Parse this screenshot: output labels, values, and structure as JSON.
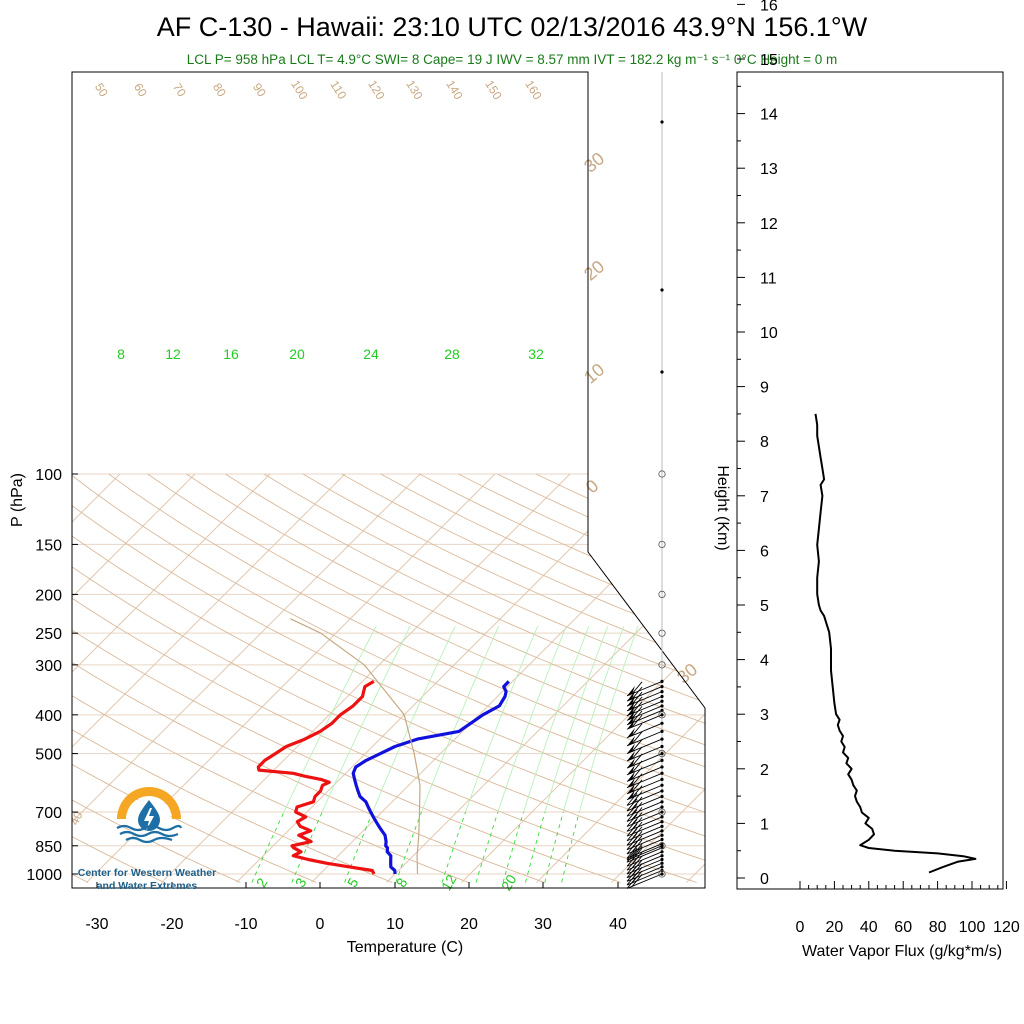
{
  "title": "AF C-130 - Hawaii: 23:10 UTC 02/13/2016  43.9°N 156.1°W",
  "subtitle": "LCL P= 958 hPa  LCL T= 4.9°C  SWI= 8  Cape= 19 J  IWV = 8.57 mm  IVT = 182.2 kg m⁻¹ s⁻¹  0°C Height = 0 m",
  "logo": {
    "line1": "Center for Western Weather",
    "line2": "and Water Extremes",
    "colors": {
      "ring": "#f5a623",
      "drop": "#1d6fa5",
      "waves": "#1d6fa5"
    }
  },
  "colors": {
    "temperature": "#ee1111",
    "dewpoint": "#1111dd",
    "dry_adiabat": "#d9b99a",
    "mixing_ratio": "#33dd33",
    "parcel": "#c8a882",
    "flux": "#000000"
  },
  "chart_data": [
    {
      "type": "line",
      "name": "skewt-logp",
      "xlabel": "Temperature (C)",
      "ylabel": "P (hPa)",
      "x_ticks": [
        -30,
        -20,
        -10,
        0,
        10,
        20,
        30,
        40
      ],
      "xlim": [
        -33,
        50
      ],
      "y_ticks": [
        100,
        150,
        200,
        250,
        300,
        400,
        500,
        700,
        850,
        1000
      ],
      "ylim": [
        1050,
        100
      ],
      "y_scale": "log",
      "skew": "45 deg",
      "isotherm_labels": [
        -40,
        -30,
        -20,
        -10,
        0,
        10,
        20,
        30
      ],
      "dry_adiabat_labels": [
        50,
        60,
        70,
        80,
        90,
        100,
        110,
        120,
        130,
        140,
        150,
        160
      ],
      "mixing_ratio_top_labels": [
        8,
        12,
        16,
        20,
        24,
        28,
        32
      ],
      "mixing_ratio_bottom_labels": [
        2,
        3,
        5,
        8,
        12,
        20
      ],
      "series": [
        {
          "p": [
            1000,
            980,
            960,
            940,
            920,
            900,
            880,
            860,
            850,
            830,
            800,
            780,
            760,
            740,
            720,
            700,
            680,
            660,
            640,
            620,
            600,
            590,
            580,
            570,
            560,
            550,
            540,
            520,
            500,
            480,
            460,
            440,
            420,
            400,
            380,
            360,
            350,
            340,
            330
          ],
          "t": [
            7.2,
            6.5,
            3.0,
            -0.5,
            -3.5,
            -6.0,
            -5.5,
            -7.0,
            -7.5,
            -5.5,
            -8.0,
            -7.0,
            -9.0,
            -10.0,
            -9.5,
            -11.5,
            -12.0,
            -10.5,
            -11.0,
            -11.0,
            -11.5,
            -11.0,
            -12.5,
            -15.0,
            -17.0,
            -22.0,
            -22.5,
            -22.5,
            -22.0,
            -21.5,
            -20.0,
            -19.0,
            -18.5,
            -18.5,
            -18.0,
            -18.0,
            -18.5,
            -19.0,
            -18.5
          ]
        },
        {
          "p": [
            1000,
            980,
            960,
            940,
            920,
            900,
            880,
            860,
            850,
            830,
            800,
            780,
            760,
            740,
            720,
            700,
            680,
            660,
            640,
            620,
            600,
            580,
            560,
            540,
            520,
            500,
            480,
            460,
            440,
            420,
            400,
            380,
            360,
            350,
            340,
            330
          ],
          "t": [
            10.0,
            9.5,
            8.5,
            8.0,
            7.5,
            7.0,
            6.0,
            5.5,
            5.0,
            4.5,
            3.5,
            2.5,
            1.5,
            0.5,
            -0.5,
            -1.5,
            -2.5,
            -3.5,
            -5.0,
            -6.0,
            -7.0,
            -8.0,
            -9.0,
            -9.5,
            -9.0,
            -8.0,
            -7.0,
            -5.0,
            -0.5,
            0.0,
            0.5,
            1.5,
            1.0,
            0.5,
            -0.5,
            -0.5
          ]
        },
        {
          "p": [
            1000,
            900,
            800,
            700,
            600,
            500,
            400,
            300,
            250,
            230
          ],
          "t": [
            13.0,
            10.5,
            8.0,
            5.0,
            1.5,
            -3.5,
            -10.0,
            -22.0,
            -32.0,
            -38.0
          ]
        }
      ],
      "wind_barbs": {
        "p_levels": [
          1000,
          980,
          960,
          940,
          920,
          900,
          880,
          860,
          850,
          840,
          820,
          800,
          780,
          760,
          740,
          720,
          700,
          680,
          660,
          640,
          620,
          600,
          580,
          560,
          540,
          520,
          500,
          480,
          460,
          440,
          420,
          400,
          390,
          380,
          370,
          360,
          350,
          340,
          330
        ]
      }
    },
    {
      "type": "line",
      "name": "water-vapor-flux",
      "xlabel": "Water Vapor Flux (g/kg*m/s)",
      "ylabel": "Height (Km)",
      "x_ticks": [
        0,
        20,
        40,
        60,
        80,
        100,
        120
      ],
      "xlim": [
        0,
        120
      ],
      "y_ticks": [
        0,
        1,
        2,
        3,
        4,
        5,
        6,
        7,
        8,
        9,
        10,
        11,
        12,
        13,
        14,
        15,
        16
      ],
      "ylim": [
        -0.2,
        16.3
      ],
      "series": [
        {
          "points": [
            [
              75,
              0.1
            ],
            [
              83,
              0.2
            ],
            [
              92,
              0.3
            ],
            [
              102,
              0.35
            ],
            [
              95,
              0.4
            ],
            [
              80,
              0.45
            ],
            [
              55,
              0.5
            ],
            [
              40,
              0.55
            ],
            [
              35,
              0.6
            ],
            [
              40,
              0.7
            ],
            [
              43,
              0.8
            ],
            [
              42,
              0.9
            ],
            [
              38,
              1.0
            ],
            [
              40,
              1.1
            ],
            [
              36,
              1.2
            ],
            [
              35,
              1.3
            ],
            [
              33,
              1.4
            ],
            [
              32,
              1.5
            ],
            [
              33,
              1.6
            ],
            [
              31,
              1.7
            ],
            [
              30,
              1.8
            ],
            [
              28,
              1.9
            ],
            [
              30,
              2.0
            ],
            [
              27,
              2.1
            ],
            [
              28,
              2.2
            ],
            [
              25,
              2.3
            ],
            [
              26,
              2.4
            ],
            [
              24,
              2.5
            ],
            [
              25,
              2.6
            ],
            [
              23,
              2.7
            ],
            [
              22,
              2.8
            ],
            [
              23,
              2.9
            ],
            [
              21,
              3.0
            ],
            [
              20,
              3.2
            ],
            [
              19,
              3.5
            ],
            [
              18,
              3.8
            ],
            [
              18,
              4.2
            ],
            [
              17,
              4.5
            ],
            [
              15,
              4.7
            ],
            [
              14,
              4.8
            ],
            [
              12,
              4.9
            ],
            [
              11,
              5.0
            ],
            [
              10,
              5.2
            ],
            [
              10,
              5.5
            ],
            [
              11,
              5.8
            ],
            [
              10,
              6.1
            ],
            [
              11,
              6.4
            ],
            [
              12,
              6.7
            ],
            [
              13,
              7.0
            ],
            [
              12,
              7.2
            ],
            [
              14,
              7.3
            ],
            [
              13,
              7.5
            ],
            [
              12,
              7.7
            ],
            [
              11,
              7.9
            ],
            [
              10,
              8.1
            ],
            [
              10,
              8.3
            ],
            [
              9,
              8.5
            ]
          ]
        }
      ]
    }
  ]
}
